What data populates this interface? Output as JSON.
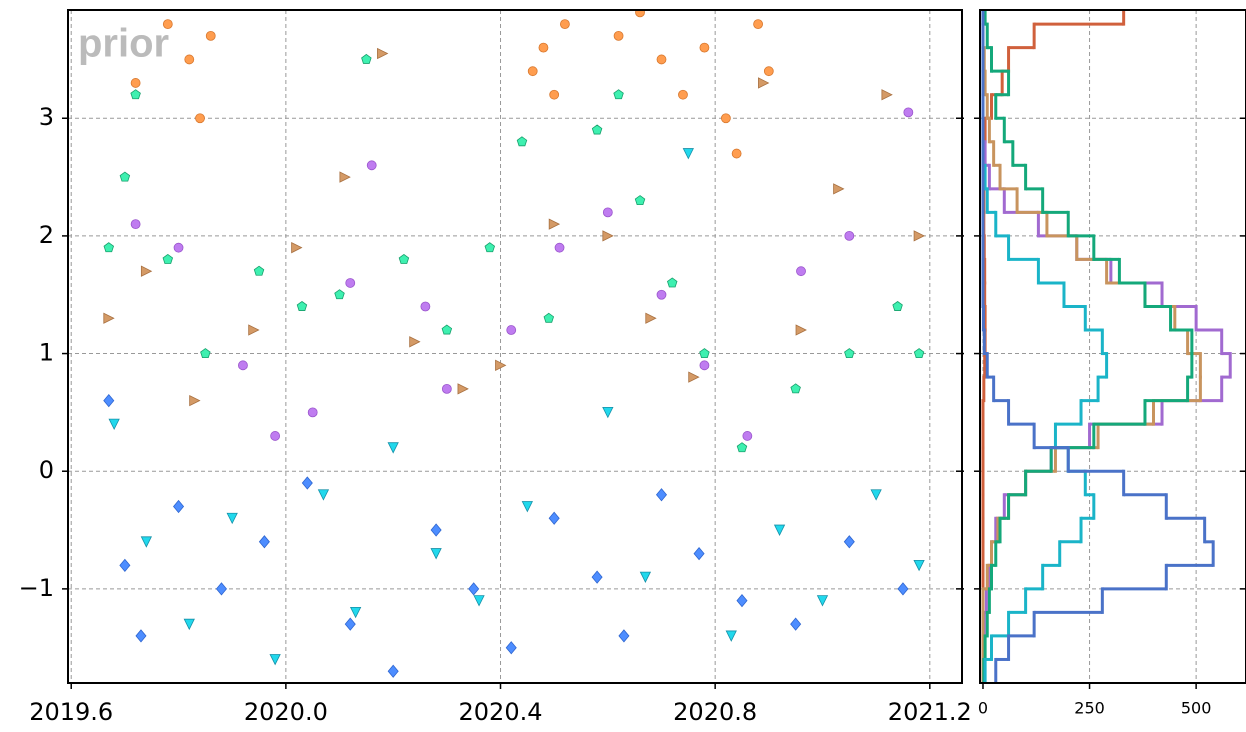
{
  "chart_data": [
    {
      "type": "scatter",
      "annotation": "prior",
      "grid": true,
      "xlim": [
        2019.594,
        2021.26
      ],
      "ylim": [
        -1.8,
        3.92
      ],
      "xticks": [
        2019.6,
        {
          "value": 2020,
          "label": "2020.0"
        },
        2020.4,
        2020.8,
        2021.2
      ],
      "yticks": [
        {
          "value": -1,
          "label": "−1"
        },
        0,
        1,
        2,
        3
      ],
      "series": [
        {
          "marker": "o",
          "color": "#ff9d4f",
          "edgecolor": "#d8782e",
          "x": [
            2019.78,
            2019.82,
            2019.84,
            2019.86,
            2019.72,
            2020.48,
            2020.5,
            2020.52,
            2020.46,
            2020.62,
            2020.66,
            2020.7,
            2020.74,
            2020.78,
            2020.82,
            2020.84,
            2020.88,
            2020.9
          ],
          "values": [
            3.8,
            3.5,
            3.0,
            3.7,
            3.3,
            3.6,
            3.2,
            3.8,
            3.4,
            3.7,
            3.9,
            3.5,
            3.2,
            3.6,
            3.0,
            2.7,
            3.8,
            3.4
          ]
        },
        {
          "marker": "o",
          "color": "#bf7cf0",
          "edgecolor": "#9a55cc",
          "x": [
            2019.72,
            2019.8,
            2019.92,
            2019.98,
            2020.05,
            2020.12,
            2020.16,
            2020.26,
            2020.3,
            2020.42,
            2020.51,
            2020.6,
            2020.7,
            2020.78,
            2020.86,
            2020.96,
            2021.05,
            2021.16
          ],
          "values": [
            2.1,
            1.9,
            0.9,
            0.3,
            0.5,
            1.6,
            2.6,
            1.4,
            0.7,
            1.2,
            1.9,
            2.2,
            1.5,
            0.9,
            0.3,
            1.7,
            2.0,
            3.05
          ]
        },
        {
          "marker": ">",
          "color": "#d49a66",
          "edgecolor": "#a87040",
          "x": [
            2019.67,
            2019.74,
            2019.83,
            2019.94,
            2020.02,
            2020.11,
            2020.18,
            2020.24,
            2020.33,
            2020.4,
            2020.5,
            2020.6,
            2020.68,
            2020.76,
            2020.89,
            2020.96,
            2021.03,
            2021.12,
            2021.18
          ],
          "values": [
            1.3,
            1.7,
            0.6,
            1.2,
            1.9,
            2.5,
            3.55,
            1.1,
            0.7,
            0.9,
            2.1,
            2.0,
            1.3,
            0.8,
            3.3,
            1.2,
            2.4,
            3.2,
            2.0
          ]
        },
        {
          "marker": "D",
          "color": "#4d8dff",
          "edgecolor": "#2f66d0",
          "x": [
            2019.67,
            2019.7,
            2019.73,
            2019.8,
            2019.88,
            2019.96,
            2020.04,
            2020.12,
            2020.2,
            2020.28,
            2020.35,
            2020.42,
            2020.5,
            2020.58,
            2020.63,
            2020.7,
            2020.77,
            2020.85,
            2020.95,
            2021.05,
            2021.15
          ],
          "values": [
            0.6,
            -0.8,
            -1.4,
            -0.3,
            -1.0,
            -0.6,
            -0.1,
            -1.3,
            -1.7,
            -0.5,
            -1.0,
            -1.5,
            -0.4,
            -0.9,
            -1.4,
            -0.2,
            -0.7,
            -1.1,
            -1.3,
            -0.6,
            -1.0
          ]
        },
        {
          "marker": "v",
          "color": "#21d8ec",
          "edgecolor": "#1590a8",
          "x": [
            2019.68,
            2019.74,
            2019.82,
            2019.9,
            2019.98,
            2020.07,
            2020.13,
            2020.2,
            2020.28,
            2020.36,
            2020.45,
            2020.6,
            2020.67,
            2020.75,
            2020.83,
            2020.92,
            2021.0,
            2021.1,
            2021.18
          ],
          "values": [
            0.4,
            -0.6,
            -1.3,
            -0.4,
            -1.6,
            -0.2,
            -1.2,
            0.2,
            -0.7,
            -1.1,
            -0.3,
            0.5,
            -0.9,
            2.7,
            -1.4,
            -0.5,
            -1.1,
            -0.2,
            -0.8
          ]
        },
        {
          "marker": "p",
          "color": "#3ef0b0",
          "edgecolor": "#17a06c",
          "x": [
            2019.67,
            2019.7,
            2019.72,
            2019.78,
            2019.85,
            2019.95,
            2020.03,
            2020.1,
            2020.15,
            2020.22,
            2020.3,
            2020.38,
            2020.44,
            2020.49,
            2020.58,
            2020.62,
            2020.66,
            2020.72,
            2020.78,
            2020.85,
            2020.95,
            2021.05,
            2021.14,
            2021.18
          ],
          "values": [
            1.9,
            2.5,
            3.2,
            1.8,
            1.0,
            1.7,
            1.4,
            1.5,
            3.5,
            1.8,
            1.2,
            1.9,
            2.8,
            1.3,
            2.9,
            3.2,
            2.3,
            1.6,
            1.0,
            0.2,
            0.7,
            1.0,
            1.4,
            1.0
          ]
        }
      ]
    },
    {
      "type": "histogram",
      "orientation": "horizontal",
      "grid": true,
      "xlim": [
        -7,
        617
      ],
      "ylim": [
        -1.8,
        3.92
      ],
      "xticks": [
        0,
        250,
        500
      ],
      "yticks": [
        -1,
        0,
        1,
        2,
        3
      ],
      "bins": [
        -1.8,
        -1.6,
        -1.4,
        -1.2,
        -1.0,
        -0.8,
        -0.6,
        -0.4,
        -0.2,
        0.0,
        0.2,
        0.4,
        0.6,
        0.8,
        1.0,
        1.2,
        1.4,
        1.6,
        1.8,
        2.0,
        2.2,
        2.4,
        2.6,
        2.8,
        3.0,
        3.2,
        3.4,
        3.6,
        3.8,
        4.0
      ],
      "series": [
        {
          "color": "#d0603c",
          "values": [
            0,
            0,
            0,
            0,
            0,
            0,
            0,
            0,
            0,
            0,
            0,
            0,
            2,
            4,
            5,
            5,
            4,
            4,
            3,
            2,
            2,
            2,
            3,
            5,
            20,
            45,
            60,
            120,
            330
          ]
        },
        {
          "color": "#a16ad0",
          "values": [
            0,
            0,
            3,
            8,
            15,
            20,
            30,
            50,
            100,
            160,
            250,
            420,
            560,
            580,
            560,
            500,
            420,
            300,
            220,
            130,
            50,
            15,
            5,
            0,
            0,
            0,
            0,
            0,
            0
          ]
        },
        {
          "color": "#c8945e",
          "values": [
            0,
            0,
            0,
            0,
            10,
            20,
            35,
            60,
            100,
            170,
            270,
            400,
            510,
            510,
            480,
            450,
            380,
            290,
            220,
            150,
            80,
            40,
            25,
            15,
            10,
            5,
            3,
            0,
            0
          ]
        },
        {
          "color": "#14a87a",
          "values": [
            2,
            5,
            10,
            15,
            20,
            30,
            40,
            60,
            100,
            160,
            260,
            380,
            480,
            490,
            490,
            440,
            380,
            320,
            260,
            200,
            140,
            100,
            70,
            50,
            30,
            60,
            20,
            10,
            5
          ]
        },
        {
          "color": "#1ab4c8",
          "values": [
            5,
            20,
            60,
            100,
            140,
            180,
            230,
            260,
            240,
            200,
            170,
            230,
            270,
            290,
            280,
            240,
            190,
            130,
            60,
            30,
            10,
            5,
            0,
            0,
            0,
            0,
            0,
            0,
            0
          ]
        },
        {
          "color": "#4a72c8",
          "values": [
            30,
            60,
            120,
            280,
            430,
            540,
            520,
            430,
            330,
            200,
            120,
            60,
            25,
            10,
            3,
            1,
            0,
            0,
            0,
            0,
            0,
            0,
            0,
            0,
            0,
            0,
            0,
            0,
            0
          ]
        }
      ]
    }
  ]
}
